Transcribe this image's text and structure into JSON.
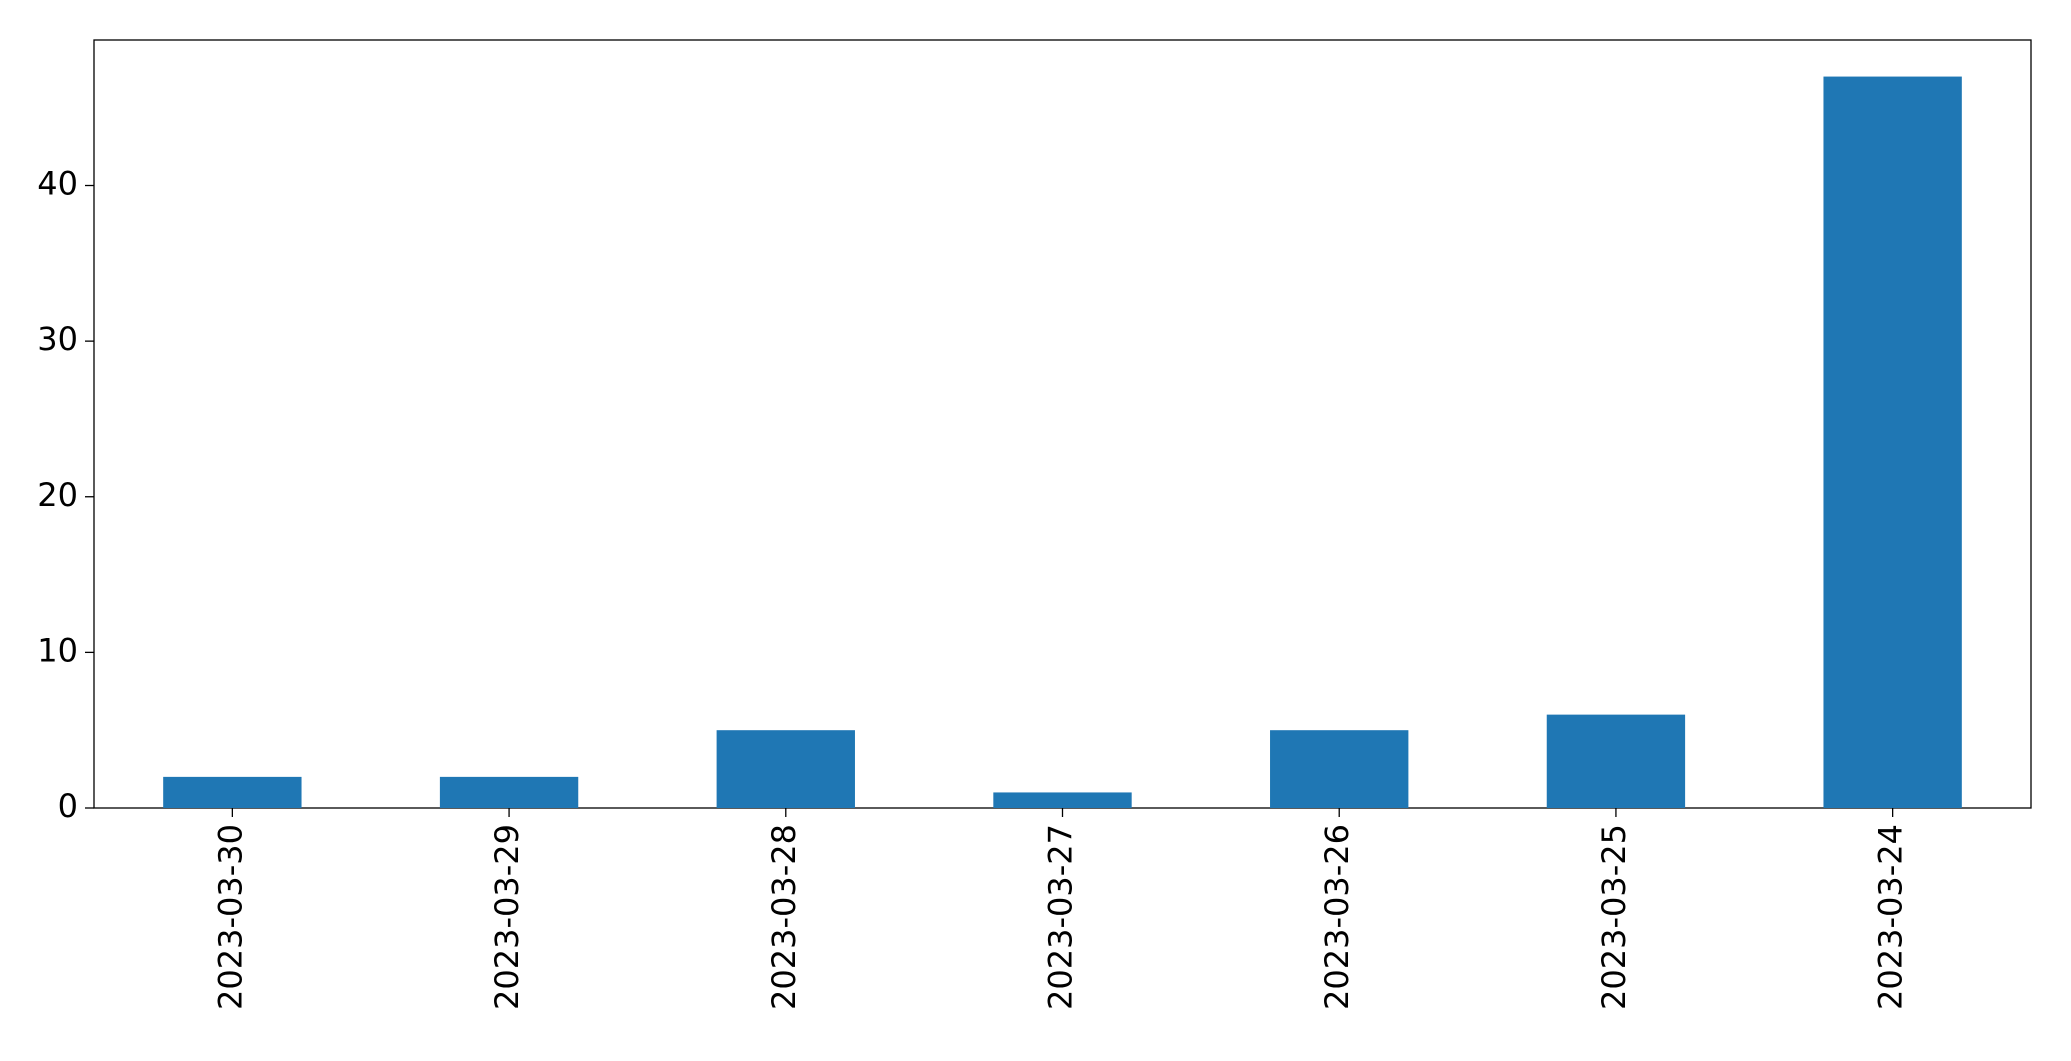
{
  "chart_data": {
    "type": "bar",
    "categories": [
      "2023-03-30",
      "2023-03-29",
      "2023-03-28",
      "2023-03-27",
      "2023-03-26",
      "2023-03-25",
      "2023-03-24"
    ],
    "values": [
      2,
      2,
      5,
      1,
      5,
      6,
      47
    ],
    "color": "#1f77b4",
    "ylim": [
      0,
      49.35
    ],
    "yticks": [
      0,
      10,
      20,
      30,
      40
    ],
    "grid": false
  }
}
